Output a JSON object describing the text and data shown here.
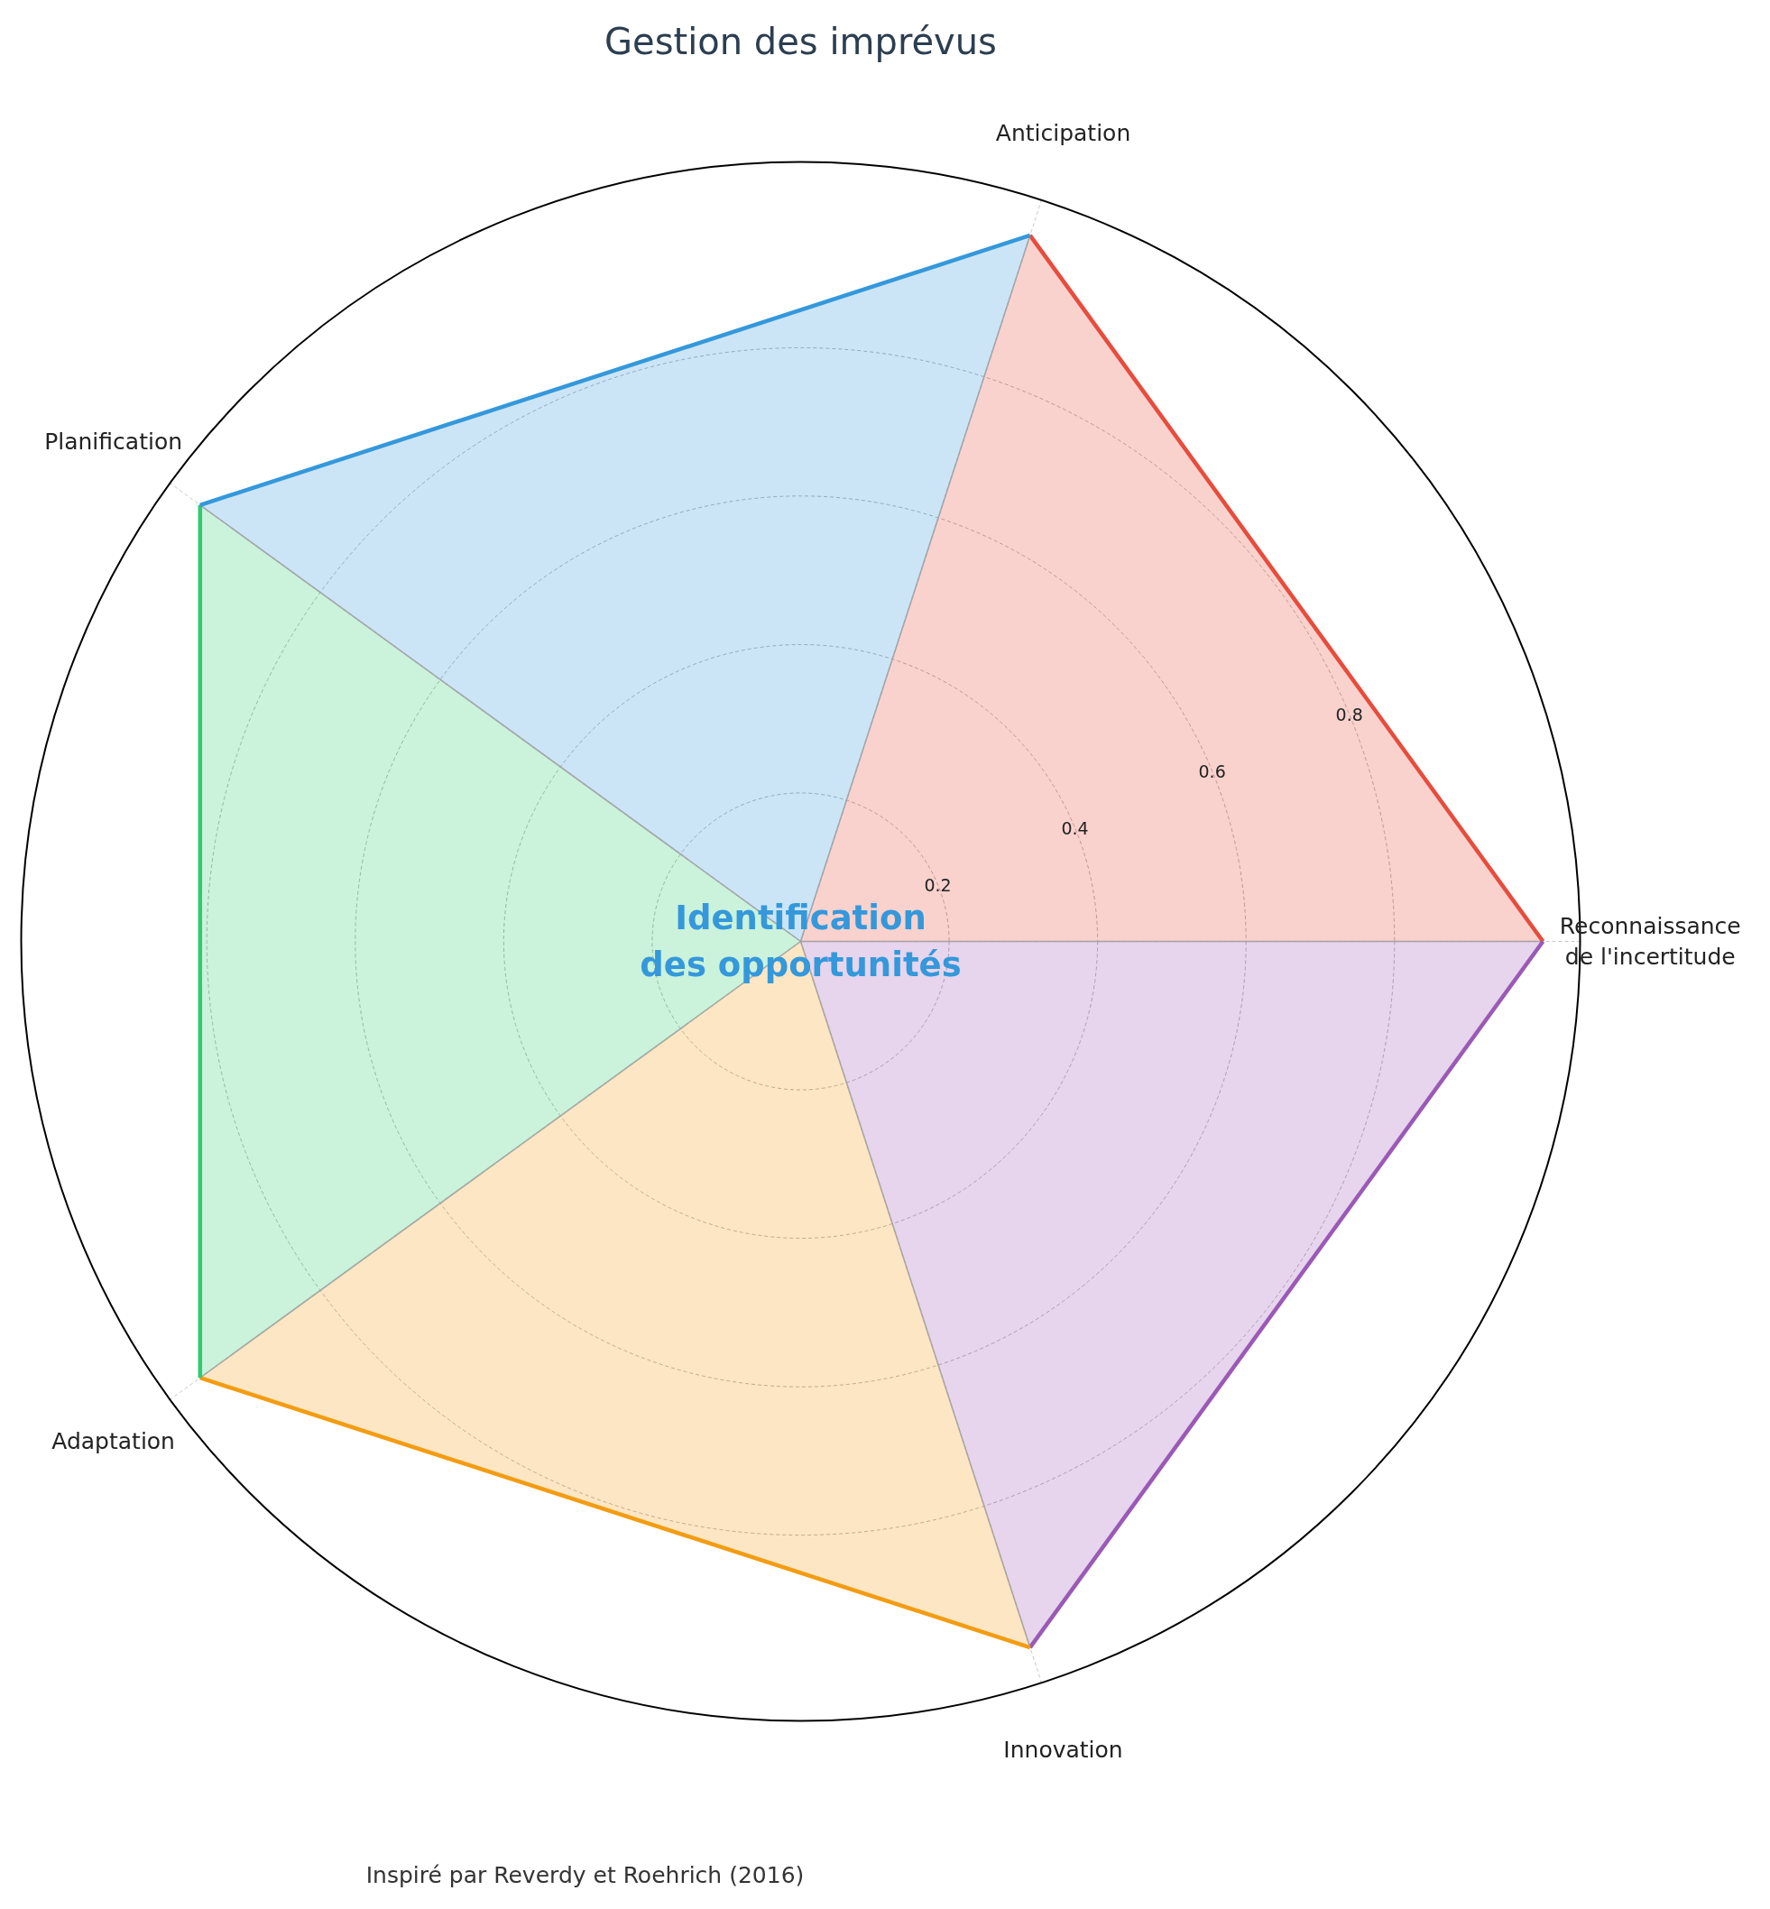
{
  "chart_data": {
    "type": "radar",
    "title": "Gestion des imprévus",
    "categories": [
      "Anticipation",
      "Reconnaissance\nde l'incertitude",
      "Innovation",
      "Adaptation",
      "Planification"
    ],
    "series": [
      {
        "color": "#e74c3c",
        "values": [
          1,
          1,
          0,
          0,
          0
        ]
      },
      {
        "color": "#9b59b6",
        "values": [
          0,
          1,
          1,
          0,
          0
        ]
      },
      {
        "color": "#f39c12",
        "values": [
          0,
          0,
          1,
          1,
          0
        ]
      },
      {
        "color": "#2ecc71",
        "values": [
          0,
          0,
          0,
          1,
          1
        ]
      },
      {
        "color": "#3498db",
        "values": [
          1,
          0,
          0,
          0,
          1
        ]
      }
    ],
    "ylim": [
      0,
      1.05
    ],
    "yticks": [
      0.2,
      0.4,
      0.6,
      0.8
    ],
    "grid": true,
    "annotations": [
      "Identification\ndes opportunités",
      "Inspiré par Reverdy et Roehrich (2016)"
    ]
  }
}
